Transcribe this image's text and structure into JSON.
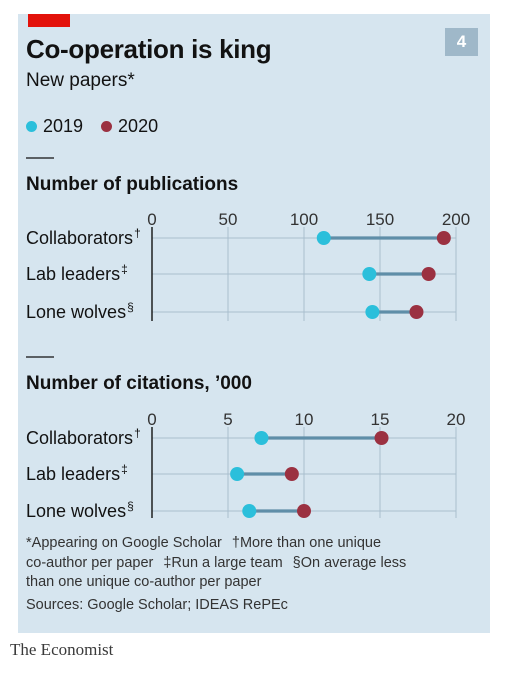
{
  "header": {
    "title": "Co-operation is king",
    "subtitle": "New papers*",
    "badge": "4"
  },
  "legend": [
    {
      "label": "2019",
      "color": "#2bbfdb"
    },
    {
      "label": "2020",
      "color": "#9b3141"
    }
  ],
  "chart_data": [
    {
      "type": "dot-range",
      "title": "Number of publications",
      "categories": [
        "Collaborators",
        "Lab leaders",
        "Lone wolves"
      ],
      "category_marks": [
        "†",
        "‡",
        "§"
      ],
      "xlim": [
        0,
        200
      ],
      "xticks": [
        0,
        50,
        100,
        150,
        200
      ],
      "grid": true,
      "series": [
        {
          "name": "2019",
          "color": "#2bbfdb",
          "values": [
            113,
            143,
            145
          ]
        },
        {
          "name": "2020",
          "color": "#9b3141",
          "values": [
            192,
            182,
            174
          ]
        }
      ]
    },
    {
      "type": "dot-range",
      "title": "Number of citations, ’000",
      "categories": [
        "Collaborators",
        "Lab leaders",
        "Lone wolves"
      ],
      "category_marks": [
        "†",
        "‡",
        "§"
      ],
      "xlim": [
        0,
        20
      ],
      "xticks": [
        0,
        5,
        10,
        15,
        20
      ],
      "grid": true,
      "series": [
        {
          "name": "2019",
          "color": "#2bbfdb",
          "values": [
            7.2,
            5.6,
            6.4
          ]
        },
        {
          "name": "2020",
          "color": "#9b3141",
          "values": [
            15.1,
            9.2,
            10.0
          ]
        }
      ]
    }
  ],
  "notes": {
    "line1a": "*Appearing on Google Scholar",
    "line1b": "†More than one unique",
    "line2a": "co-author per paper",
    "line2b": "‡Run a large team",
    "line2c": "§On average less",
    "line3": "than one unique co-author per paper",
    "sources": "Sources: Google Scholar; IDEAS RePEc"
  },
  "brand": "The Economist"
}
